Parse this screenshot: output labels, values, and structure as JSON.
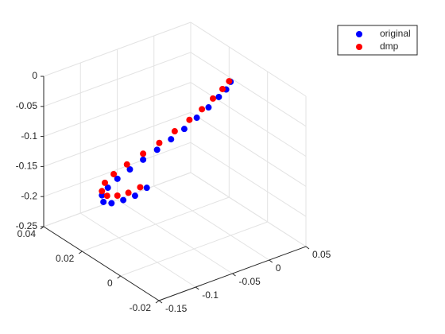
{
  "chart_data": {
    "type": "scatter3d",
    "series": [
      {
        "name": "original",
        "color": "#0000ff",
        "x": [
          0.052,
          0.046,
          0.036,
          0.022,
          0.006,
          -0.011,
          -0.029,
          -0.048,
          -0.067,
          -0.085,
          -0.102,
          -0.115,
          -0.123,
          -0.121,
          -0.11,
          -0.094,
          -0.078,
          -0.062
        ],
        "y": [
          0.02,
          0.02,
          0.02,
          0.02,
          0.02,
          0.02,
          0.02,
          0.02,
          0.02,
          0.02,
          0.02,
          0.02,
          0.02,
          0.02,
          0.02,
          0.02,
          0.02,
          0.02
        ],
        "z": [
          -0.059,
          -0.069,
          -0.077,
          -0.088,
          -0.098,
          -0.109,
          -0.118,
          -0.127,
          -0.135,
          -0.143,
          -0.151,
          -0.16,
          -0.169,
          -0.181,
          -0.188,
          -0.19,
          -0.19,
          -0.184
        ]
      },
      {
        "name": "dmp",
        "color": "#ff0000",
        "x": [
          0.05,
          0.041,
          0.028,
          0.013,
          -0.004,
          -0.024,
          -0.045,
          -0.067,
          -0.089,
          -0.107,
          -0.119,
          -0.123,
          -0.116,
          -0.102,
          -0.087,
          -0.071
        ],
        "y": [
          0.02,
          0.02,
          0.02,
          0.02,
          0.02,
          0.02,
          0.02,
          0.02,
          0.02,
          0.02,
          0.02,
          0.02,
          0.02,
          0.02,
          0.02,
          0.02
        ],
        "z": [
          -0.057,
          -0.066,
          -0.076,
          -0.087,
          -0.097,
          -0.107,
          -0.117,
          -0.125,
          -0.133,
          -0.141,
          -0.15,
          -0.162,
          -0.173,
          -0.179,
          -0.181,
          -0.179
        ]
      }
    ],
    "xlim": [
      -0.15,
      0.05
    ],
    "xticks": [
      -0.15,
      -0.1,
      -0.05,
      0,
      0.05
    ],
    "ylim": [
      -0.02,
      0.04
    ],
    "yticks": [
      -0.02,
      0,
      0.02,
      0.04
    ],
    "zlim": [
      -0.25,
      0
    ],
    "zticks": [
      -0.25,
      -0.2,
      -0.15,
      -0.1,
      -0.05,
      0
    ],
    "grid": true,
    "legend": "upper right"
  }
}
